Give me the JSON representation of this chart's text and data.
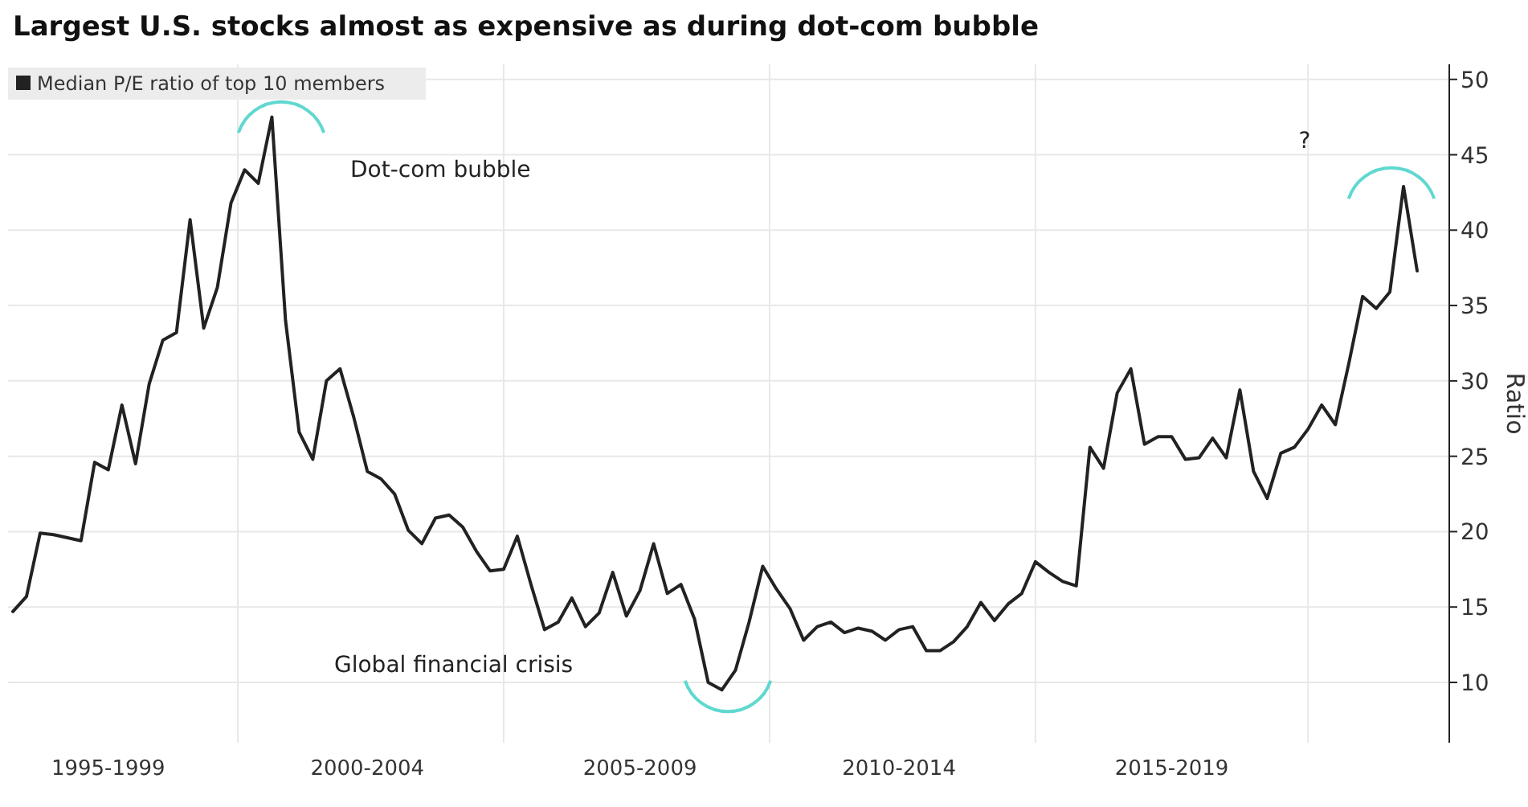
{
  "chart_data": {
    "type": "line",
    "title": "Largest U.S. stocks almost as expensive as during dot-com bubble",
    "ylabel": "Ratio",
    "legend": "top left",
    "grid": true,
    "marker": "none",
    "line_style": "solid",
    "ylim": [
      6,
      51
    ],
    "yticks": [
      10,
      15,
      20,
      25,
      30,
      35,
      40,
      45,
      50
    ],
    "annotations": [
      "Dot-com bubble",
      "Global financial crisis",
      "?"
    ],
    "categories": [
      null,
      null,
      null,
      null,
      null,
      null,
      null,
      "1995-1999",
      null,
      null,
      null,
      null,
      null,
      null,
      null,
      null,
      null,
      null,
      null,
      null,
      null,
      null,
      null,
      null,
      null,
      null,
      "2000-2004",
      null,
      null,
      null,
      null,
      null,
      null,
      null,
      null,
      null,
      null,
      null,
      null,
      null,
      null,
      null,
      null,
      null,
      null,
      null,
      "2005-2009",
      null,
      null,
      null,
      null,
      null,
      null,
      null,
      null,
      null,
      null,
      null,
      null,
      null,
      null,
      null,
      null,
      null,
      null,
      "2010-2014",
      null,
      null,
      null,
      null,
      null,
      null,
      null,
      null,
      null,
      null,
      null,
      null,
      null,
      null,
      null,
      null,
      null,
      null,
      null,
      "2015-2019",
      null,
      null,
      null,
      null,
      null,
      null,
      null,
      null,
      null,
      null,
      null,
      null,
      null,
      null,
      null,
      null,
      null,
      null
    ],
    "series": [
      {
        "name": "Median P/E ratio of top 10 members",
        "color": "#222222",
        "values": [
          14.7,
          15.7,
          19.9,
          19.8,
          19.6,
          19.4,
          24.6,
          24.1,
          28.4,
          24.5,
          29.8,
          32.7,
          33.2,
          40.7,
          33.5,
          36.2,
          41.8,
          44.0,
          43.1,
          47.5,
          34,
          26.6,
          24.8,
          30.0,
          30.8,
          27.6,
          24.0,
          23.5,
          22.5,
          20.1,
          19.2,
          20.9,
          21.1,
          20.3,
          18.7,
          17.4,
          17.5,
          19.7,
          16.5,
          13.5,
          14.0,
          15.6,
          13.7,
          14.6,
          17.3,
          14.4,
          16.1,
          19.2,
          15.9,
          16.5,
          14.2,
          10.0,
          9.5,
          10.8,
          14.0,
          17.7,
          16.2,
          14.9,
          12.8,
          13.7,
          14.0,
          13.3,
          13.6,
          13.4,
          12.8,
          13.5,
          13.7,
          12.1,
          12.1,
          12.7,
          13.7,
          15.3,
          14.1,
          15.2,
          15.9,
          18.0,
          17.3,
          16.7,
          16.4,
          25.6,
          24.2,
          29.2,
          30.8,
          25.8,
          26.3,
          26.3,
          24.8,
          24.9,
          26.2,
          24.9,
          29.4,
          24.0,
          22.2,
          25.2,
          25.6,
          26.8,
          28.4,
          27.1,
          31.2,
          35.6,
          34.8,
          35.9,
          42.9,
          37.3
        ]
      }
    ]
  }
}
